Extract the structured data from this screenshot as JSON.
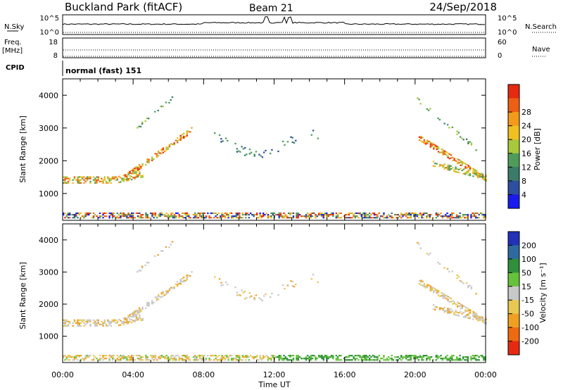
{
  "header": {
    "station": "Buckland Park (fitACF)",
    "beam": "Beam 21",
    "date": "24/Sep/2018"
  },
  "status_panels": {
    "nsky_label": "N.Sky",
    "nsky_ticks": [
      "10^5",
      "10^0"
    ],
    "nsearch_label": "N.Search",
    "nsearch_ticks": [
      "10^5",
      "10^0"
    ],
    "freq_label": "Freq.",
    "freq_unit": "[MHz]",
    "freq_ticks": [
      "18",
      "8"
    ],
    "nave_label": "Nave",
    "nave_ticks": [
      "60",
      "0"
    ],
    "cpid_label": "CPID",
    "cpid_value": "normal (fast) 151"
  },
  "time_axis": {
    "label": "Time UT",
    "ticks": [
      "00:00",
      "04:00",
      "08:00",
      "12:00",
      "16:00",
      "20:00",
      "00:00"
    ]
  },
  "chart_data": [
    {
      "type": "heatmap",
      "panel": "power",
      "ylabel": "Slant Range [km]",
      "ylim": [
        180,
        4500
      ],
      "yticks": [
        1000,
        2000,
        3000,
        4000
      ],
      "xlim_hours": [
        0,
        24
      ],
      "colorbar": {
        "label": "Power [dB]",
        "ticks": [
          "4",
          "8",
          "12",
          "16",
          "20",
          "24",
          "28"
        ],
        "colors": [
          "#1a1aee",
          "#2d4fa0",
          "#3c7a6a",
          "#4e9c5a",
          "#a7c93a",
          "#f0c020",
          "#f49a1a",
          "#ee5f15",
          "#e52a10"
        ]
      }
    },
    {
      "type": "heatmap",
      "panel": "velocity",
      "ylabel": "Slant Range [km]",
      "ylim": [
        180,
        4500
      ],
      "yticks": [
        1000,
        2000,
        3000,
        4000
      ],
      "xlim_hours": [
        0,
        24
      ],
      "colorbar": {
        "label": "Velocity [m s⁻¹]",
        "ticks": [
          "200",
          "100",
          "50",
          "15",
          "-15",
          "-50",
          "-100",
          "-200"
        ],
        "colors": [
          "#2330b8",
          "#2e6aa0",
          "#2f8f3a",
          "#66c23a",
          "#c8c8c8",
          "#e8c850",
          "#f0a020",
          "#ee6a10",
          "#e62a12"
        ]
      }
    }
  ]
}
